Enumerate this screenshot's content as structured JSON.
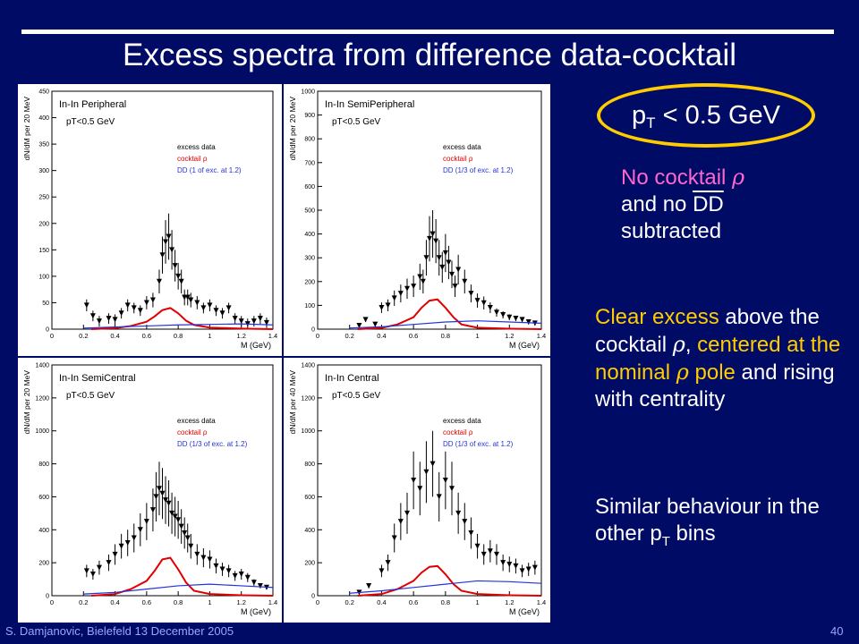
{
  "slide": {
    "title": "Excess spectra from difference data-cocktail",
    "pt_cut": {
      "prefix": "p",
      "sub": "T",
      "suffix": " < 0.5 GeV"
    },
    "note1": {
      "line1": "No cocktail ",
      "rho": "ρ",
      "line2a": "and no ",
      "dd": "DD",
      "line3": "subtracted"
    },
    "note2": {
      "a": "Clear excess",
      "b": " above the cocktail ",
      "rho": "ρ",
      ",": ",",
      "c": "centered at the nominal ",
      "d": " pole",
      "e": " and rising with centrality"
    },
    "note3": {
      "a": "Similar behaviour in the other p",
      "sub": "T",
      "b": " bins"
    },
    "footer_left": "S. Damjanovic, Bielefeld 13 December 2005",
    "page_number": "40",
    "colors": {
      "background": "#000b66",
      "accent": "#ffcc00",
      "pink": "#ff66cc"
    }
  },
  "chart_data": [
    {
      "type": "scatter",
      "title": "In-In Peripheral",
      "cut": "pT<0.5 GeV",
      "ylabel": "dN/dM per 20 MeV",
      "xlabel": "M (GeV)",
      "xlim": [
        0,
        1.4
      ],
      "ylim": [
        0,
        450
      ],
      "yticks": [
        0,
        50,
        100,
        150,
        200,
        250,
        300,
        350,
        400,
        450
      ],
      "xticks": [
        0,
        0.2,
        0.4,
        0.6,
        0.8,
        1,
        1.2,
        1.4
      ],
      "legend": [
        "excess data",
        "cocktail ρ",
        "DD (1 of exc. at 1.2)"
      ],
      "series": [
        {
          "name": "excess data",
          "x": [
            0.22,
            0.26,
            0.3,
            0.36,
            0.4,
            0.44,
            0.48,
            0.52,
            0.56,
            0.6,
            0.64,
            0.68,
            0.7,
            0.72,
            0.74,
            0.76,
            0.78,
            0.8,
            0.82,
            0.84,
            0.86,
            0.88,
            0.92,
            0.96,
            1.0,
            1.04,
            1.08,
            1.12,
            1.16,
            1.2,
            1.24,
            1.28,
            1.32,
            1.36
          ],
          "y": [
            45,
            25,
            15,
            20,
            18,
            30,
            45,
            40,
            35,
            50,
            55,
            90,
            140,
            165,
            175,
            150,
            120,
            100,
            90,
            60,
            60,
            55,
            50,
            40,
            45,
            35,
            30,
            40,
            20,
            15,
            10,
            15,
            20,
            12
          ]
        },
        {
          "name": "cocktail ρ",
          "x": [
            0.25,
            0.4,
            0.5,
            0.6,
            0.65,
            0.7,
            0.75,
            0.8,
            0.85,
            0.9,
            1.0,
            1.2,
            1.4
          ],
          "y": [
            0,
            2,
            6,
            14,
            24,
            36,
            40,
            30,
            16,
            8,
            3,
            1,
            0
          ]
        },
        {
          "name": "DD (1 of exc. at 1.2)",
          "x": [
            0.2,
            0.4,
            0.6,
            0.8,
            1.0,
            1.2,
            1.4
          ],
          "y": [
            2,
            4,
            6,
            8,
            9,
            10,
            8
          ]
        }
      ]
    },
    {
      "type": "scatter",
      "title": "In-In SemiPeripheral",
      "cut": "pT<0.5 GeV",
      "ylabel": "dN/dM per 20 MeV",
      "xlabel": "M (GeV)",
      "xlim": [
        0,
        1.4
      ],
      "ylim": [
        0,
        1000
      ],
      "yticks": [
        0,
        100,
        200,
        300,
        400,
        500,
        600,
        700,
        800,
        900,
        1000
      ],
      "xticks": [
        0,
        0.2,
        0.4,
        0.6,
        0.8,
        1,
        1.2,
        1.4
      ],
      "legend": [
        "excess data",
        "cocktail ρ",
        "DD (1/3 of exc. at 1.2)"
      ],
      "series": [
        {
          "name": "excess data",
          "x": [
            0.26,
            0.3,
            0.36,
            0.4,
            0.44,
            0.48,
            0.52,
            0.56,
            0.6,
            0.64,
            0.66,
            0.68,
            0.7,
            0.72,
            0.74,
            0.76,
            0.78,
            0.8,
            0.82,
            0.84,
            0.86,
            0.88,
            0.92,
            0.96,
            1.0,
            1.04,
            1.08,
            1.12,
            1.16,
            1.2,
            1.24,
            1.28,
            1.32,
            1.36
          ],
          "y": [
            15,
            40,
            20,
            90,
            100,
            130,
            150,
            170,
            180,
            220,
            200,
            300,
            380,
            400,
            370,
            300,
            260,
            320,
            280,
            230,
            180,
            250,
            200,
            150,
            120,
            110,
            90,
            70,
            60,
            50,
            45,
            40,
            30,
            25
          ]
        },
        {
          "name": "cocktail ρ",
          "x": [
            0.25,
            0.4,
            0.5,
            0.6,
            0.65,
            0.7,
            0.75,
            0.8,
            0.85,
            0.9,
            1.0,
            1.2,
            1.4
          ],
          "y": [
            0,
            5,
            20,
            50,
            90,
            120,
            125,
            90,
            50,
            20,
            6,
            2,
            0
          ]
        },
        {
          "name": "DD (1/3 of exc. at 1.2)",
          "x": [
            0.2,
            0.4,
            0.6,
            0.8,
            1.0,
            1.2,
            1.4
          ],
          "y": [
            5,
            10,
            20,
            30,
            35,
            30,
            25
          ]
        }
      ]
    },
    {
      "type": "scatter",
      "title": "In-In SemiCentral",
      "cut": "pT<0.5 GeV",
      "ylabel": "dN/dM per 20 MeV",
      "xlabel": "M (GeV)",
      "xlim": [
        0,
        1.4
      ],
      "ylim": [
        0,
        1400
      ],
      "yticks": [
        0,
        200,
        400,
        600,
        800,
        1000,
        1200,
        1400
      ],
      "xticks": [
        0,
        0.2,
        0.4,
        0.6,
        0.8,
        1,
        1.2,
        1.4
      ],
      "legend": [
        "excess data",
        "cocktail ρ",
        "DD (1/3 of exc. at 1.2)"
      ],
      "series": [
        {
          "name": "excess data",
          "x": [
            0.22,
            0.26,
            0.3,
            0.36,
            0.4,
            0.44,
            0.48,
            0.52,
            0.56,
            0.6,
            0.64,
            0.66,
            0.68,
            0.7,
            0.72,
            0.74,
            0.76,
            0.78,
            0.8,
            0.82,
            0.84,
            0.86,
            0.88,
            0.92,
            0.96,
            1.0,
            1.04,
            1.08,
            1.12,
            1.16,
            1.2,
            1.24,
            1.28,
            1.32,
            1.36
          ],
          "y": [
            150,
            130,
            170,
            200,
            250,
            300,
            320,
            350,
            400,
            450,
            520,
            600,
            650,
            620,
            580,
            560,
            500,
            480,
            460,
            420,
            380,
            350,
            300,
            250,
            230,
            220,
            180,
            160,
            150,
            120,
            130,
            110,
            80,
            60,
            50
          ]
        },
        {
          "name": "cocktail ρ",
          "x": [
            0.25,
            0.4,
            0.5,
            0.6,
            0.65,
            0.7,
            0.75,
            0.8,
            0.85,
            0.9,
            1.0,
            1.2,
            1.4
          ],
          "y": [
            0,
            10,
            40,
            90,
            150,
            220,
            230,
            160,
            80,
            30,
            10,
            3,
            0
          ]
        },
        {
          "name": "DD (1/3 of exc. at 1.2)",
          "x": [
            0.2,
            0.4,
            0.6,
            0.8,
            1.0,
            1.2,
            1.4
          ],
          "y": [
            10,
            20,
            40,
            60,
            70,
            60,
            50
          ]
        }
      ]
    },
    {
      "type": "scatter",
      "title": "In-In Central",
      "cut": "pT<0.5 GeV",
      "ylabel": "dN/dM per 40 MeV",
      "xlabel": "M (GeV)",
      "xlim": [
        0,
        1.4
      ],
      "ylim": [
        0,
        1400
      ],
      "yticks": [
        0,
        200,
        400,
        600,
        800,
        1000,
        1200,
        1400
      ],
      "xticks": [
        0,
        0.2,
        0.4,
        0.6,
        0.8,
        1,
        1.2,
        1.4
      ],
      "legend": [
        "excess data",
        "cocktail ρ",
        "DD (1/3 of exc. at 1.2)"
      ],
      "series": [
        {
          "name": "excess data",
          "x": [
            0.26,
            0.32,
            0.4,
            0.44,
            0.48,
            0.52,
            0.56,
            0.6,
            0.64,
            0.68,
            0.72,
            0.76,
            0.8,
            0.84,
            0.88,
            0.92,
            0.96,
            1.0,
            1.04,
            1.08,
            1.12,
            1.16,
            1.2,
            1.24,
            1.28,
            1.32,
            1.36
          ],
          "y": [
            20,
            60,
            150,
            200,
            350,
            450,
            500,
            700,
            650,
            750,
            800,
            600,
            700,
            650,
            500,
            450,
            380,
            300,
            250,
            270,
            250,
            200,
            190,
            180,
            150,
            160,
            170
          ]
        },
        {
          "name": "cocktail ρ",
          "x": [
            0.25,
            0.4,
            0.5,
            0.6,
            0.65,
            0.7,
            0.75,
            0.8,
            0.85,
            0.9,
            1.0,
            1.2,
            1.4
          ],
          "y": [
            0,
            10,
            40,
            90,
            140,
            175,
            180,
            130,
            70,
            30,
            10,
            3,
            0
          ]
        },
        {
          "name": "DD (1/3 of exc. at 1.2)",
          "x": [
            0.2,
            0.4,
            0.6,
            0.8,
            1.0,
            1.2,
            1.4
          ],
          "y": [
            15,
            30,
            50,
            70,
            90,
            85,
            75
          ]
        }
      ]
    }
  ]
}
